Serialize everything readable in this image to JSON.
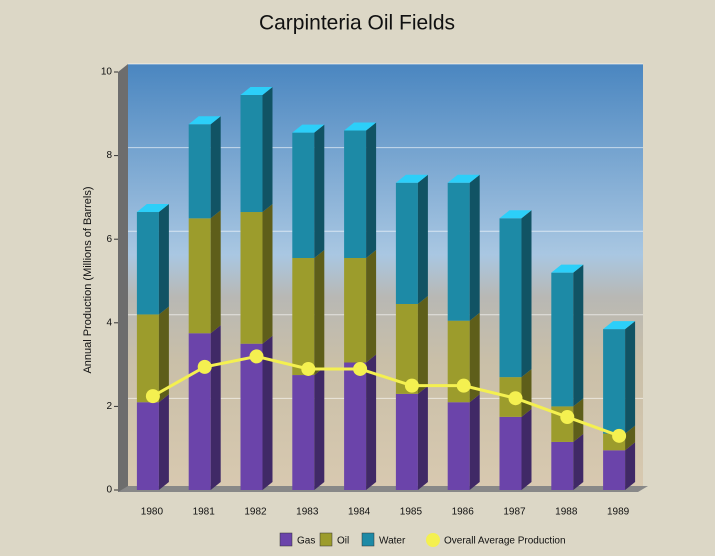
{
  "chart_data": {
    "type": "bar",
    "stacked": true,
    "title": "Carpinteria Oil Fields",
    "y_label": "Annual Production (Millions of Barrels)",
    "categories": [
      "1980",
      "1981",
      "1982",
      "1983",
      "1984",
      "1985",
      "1986",
      "1987",
      "1988",
      "1989"
    ],
    "series": [
      {
        "name": "Gas",
        "color": "#6b44aa",
        "values": [
          2.1,
          3.75,
          3.5,
          2.75,
          3.05,
          2.3,
          2.1,
          1.75,
          1.15,
          0.95
        ]
      },
      {
        "name": "Oil",
        "color": "#9c9c2c",
        "values": [
          2.1,
          2.75,
          3.15,
          2.8,
          2.5,
          2.15,
          1.95,
          0.95,
          0.85,
          0.4
        ]
      },
      {
        "name": "Water",
        "color": "#1d8aa6",
        "values": [
          2.45,
          2.25,
          2.8,
          3.0,
          3.05,
          2.9,
          3.3,
          3.8,
          3.2,
          2.5
        ]
      },
      {
        "name": "Overall Average Production",
        "type": "line",
        "color": "#f4f050",
        "values": [
          2.15,
          2.85,
          3.1,
          2.8,
          2.8,
          2.4,
          2.4,
          2.1,
          1.65,
          1.2
        ]
      }
    ],
    "ylim": [
      0,
      10
    ],
    "yticks": [
      0,
      2,
      4,
      6,
      8,
      10
    ],
    "grid": true
  }
}
